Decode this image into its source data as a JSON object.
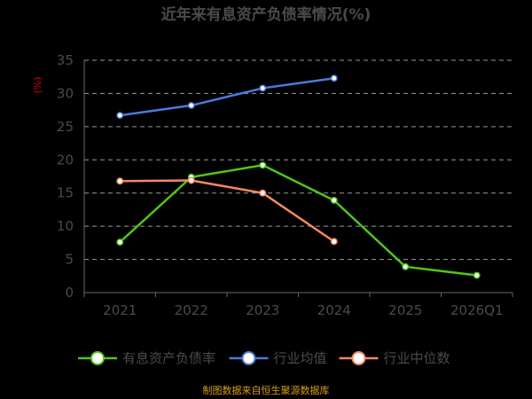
{
  "chart_data": {
    "type": "line",
    "title": "近年来有息资产负债率情况(%)",
    "ylabel": "(%)",
    "xlabel": "",
    "categories": [
      "2021",
      "2022",
      "2023",
      "2024",
      "2025",
      "2026Q1"
    ],
    "ylim": [
      0,
      35
    ],
    "yticks": [
      0,
      5,
      10,
      15,
      20,
      25,
      30,
      35
    ],
    "grid": true,
    "legend_position": "bottom",
    "series": [
      {
        "name": "有息资产负债率",
        "color": "#52c41a",
        "values": [
          7.6,
          17.4,
          19.2,
          13.9,
          3.9,
          2.6
        ]
      },
      {
        "name": "行业均值",
        "color": "#4a7bdc",
        "values": [
          26.7,
          28.2,
          30.8,
          32.3,
          null,
          null
        ]
      },
      {
        "name": "行业中位数",
        "color": "#f4895f",
        "values": [
          16.8,
          16.9,
          15.0,
          7.7,
          null,
          null
        ]
      }
    ]
  },
  "source_text": "制图数据来自恒生聚源数据库"
}
